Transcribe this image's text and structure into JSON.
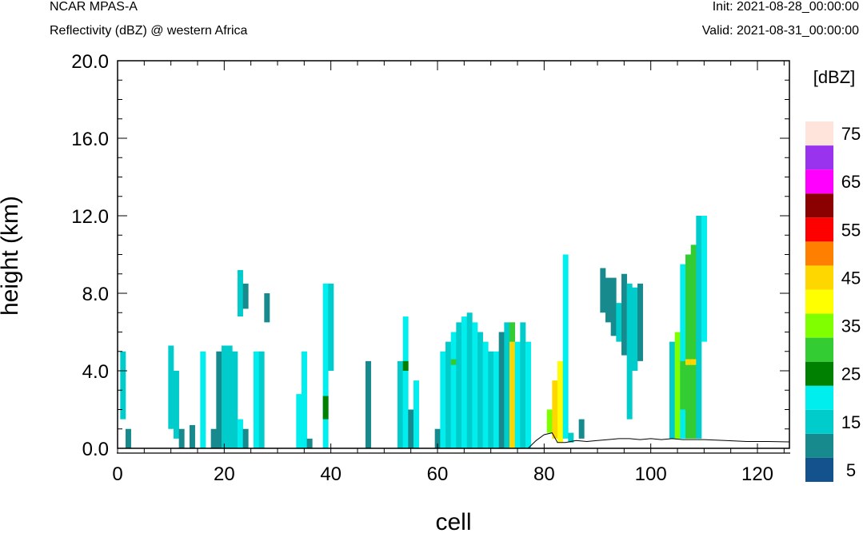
{
  "header": {
    "title_left": "NCAR MPAS-A",
    "subtitle_left": "Reflectivity (dBZ) @ western Africa",
    "title_right": "Init: 2021-08-28_00:00:00",
    "subtitle_right": "Valid: 2021-08-31_00:00:00"
  },
  "chart_data": {
    "type": "heatmap",
    "title": "Reflectivity (dBZ) @ western Africa",
    "xlabel": "cell",
    "ylabel": "height (km)",
    "xlim": [
      0,
      126
    ],
    "ylim": [
      0,
      20
    ],
    "x_ticks": [
      "0",
      "20",
      "40",
      "60",
      "80",
      "100",
      "120"
    ],
    "y_ticks": [
      "0.0",
      "4.0",
      "8.0",
      "12.0",
      "16.0",
      "20.0"
    ],
    "colorbar": {
      "unit_label": "[dBZ]",
      "tick_labels": [
        "5",
        "15",
        "25",
        "35",
        "45",
        "55",
        "65",
        "75"
      ],
      "levels": [
        5,
        10,
        15,
        20,
        25,
        30,
        35,
        40,
        45,
        50,
        55,
        60,
        65,
        70,
        75
      ],
      "colors": [
        "#13528c",
        "#168a8c",
        "#00cccc",
        "#00eeee",
        "#008000",
        "#33cc33",
        "#80ff00",
        "#ffff00",
        "#ffd700",
        "#ff8000",
        "#ff0000",
        "#8b0000",
        "#ff00ff",
        "#9933ee",
        "#ffe4dc"
      ]
    },
    "columns": [
      {
        "x": 1,
        "segs": [
          [
            1.5,
            5,
            2
          ]
        ]
      },
      {
        "x": 2,
        "segs": [
          [
            0,
            1,
            1
          ]
        ]
      },
      {
        "x": 10,
        "segs": [
          [
            1,
            5.3,
            2
          ]
        ]
      },
      {
        "x": 11,
        "segs": [
          [
            0.5,
            4,
            2
          ]
        ]
      },
      {
        "x": 12,
        "segs": [
          [
            0,
            1,
            1
          ]
        ]
      },
      {
        "x": 14,
        "segs": [
          [
            0,
            1.2,
            1
          ]
        ]
      },
      {
        "x": 16,
        "segs": [
          [
            0,
            5,
            3
          ]
        ]
      },
      {
        "x": 18,
        "segs": [
          [
            0,
            1,
            1
          ]
        ]
      },
      {
        "x": 19,
        "segs": [
          [
            0,
            5,
            1
          ]
        ]
      },
      {
        "x": 20,
        "segs": [
          [
            0,
            5.3,
            2
          ]
        ]
      },
      {
        "x": 21,
        "segs": [
          [
            0,
            5.3,
            2
          ]
        ]
      },
      {
        "x": 22,
        "segs": [
          [
            0,
            5,
            2
          ]
        ]
      },
      {
        "x": 23,
        "segs": [
          [
            0,
            1.5,
            3
          ],
          [
            6.8,
            9.2,
            2
          ]
        ]
      },
      {
        "x": 24,
        "segs": [
          [
            0,
            1,
            1
          ],
          [
            7.2,
            8.5,
            1
          ]
        ]
      },
      {
        "x": 26,
        "segs": [
          [
            0,
            5,
            3
          ]
        ]
      },
      {
        "x": 27,
        "segs": [
          [
            0,
            5,
            2
          ]
        ]
      },
      {
        "x": 28,
        "segs": [
          [
            6.5,
            8,
            1
          ]
        ]
      },
      {
        "x": 34,
        "segs": [
          [
            0,
            2.8,
            3
          ]
        ]
      },
      {
        "x": 35,
        "segs": [
          [
            0,
            5,
            3
          ]
        ]
      },
      {
        "x": 36,
        "segs": [
          [
            0,
            0.5,
            1
          ]
        ]
      },
      {
        "x": 39,
        "segs": [
          [
            0,
            8.5,
            3
          ],
          [
            1.5,
            2.7,
            4
          ]
        ]
      },
      {
        "x": 40,
        "segs": [
          [
            4,
            8.5,
            2
          ]
        ]
      },
      {
        "x": 47,
        "segs": [
          [
            0,
            4.5,
            1
          ]
        ]
      },
      {
        "x": 53,
        "segs": [
          [
            0,
            4.5,
            2
          ]
        ]
      },
      {
        "x": 54,
        "segs": [
          [
            0,
            6.8,
            3
          ],
          [
            4,
            4.5,
            4
          ]
        ]
      },
      {
        "x": 55,
        "segs": [
          [
            0,
            2,
            1
          ]
        ]
      },
      {
        "x": 56,
        "segs": [
          [
            0,
            3.5,
            3
          ]
        ]
      },
      {
        "x": 60,
        "segs": [
          [
            0,
            1,
            1
          ]
        ]
      },
      {
        "x": 61,
        "segs": [
          [
            0,
            5,
            3
          ]
        ]
      },
      {
        "x": 62,
        "segs": [
          [
            0,
            5.5,
            2
          ]
        ]
      },
      {
        "x": 63,
        "segs": [
          [
            0,
            6,
            3
          ],
          [
            4.3,
            4.6,
            5
          ]
        ]
      },
      {
        "x": 64,
        "segs": [
          [
            0,
            6.5,
            2
          ]
        ]
      },
      {
        "x": 65,
        "segs": [
          [
            0,
            6.8,
            3
          ]
        ]
      },
      {
        "x": 66,
        "segs": [
          [
            0,
            7,
            2
          ]
        ]
      },
      {
        "x": 67,
        "segs": [
          [
            0,
            6.5,
            3
          ]
        ]
      },
      {
        "x": 68,
        "segs": [
          [
            0,
            6,
            2
          ]
        ]
      },
      {
        "x": 69,
        "segs": [
          [
            0,
            5.5,
            3
          ]
        ]
      },
      {
        "x": 70,
        "segs": [
          [
            0,
            5,
            2
          ]
        ]
      },
      {
        "x": 71,
        "segs": [
          [
            0,
            5,
            3
          ]
        ]
      },
      {
        "x": 72,
        "segs": [
          [
            0,
            6,
            1
          ]
        ]
      },
      {
        "x": 73,
        "segs": [
          [
            0,
            6.5,
            2
          ]
        ]
      },
      {
        "x": 74,
        "segs": [
          [
            0,
            6.5,
            8
          ],
          [
            5.5,
            6.5,
            5
          ]
        ]
      },
      {
        "x": 75,
        "segs": [
          [
            0,
            5.5,
            3
          ]
        ]
      },
      {
        "x": 76,
        "segs": [
          [
            0,
            6.5,
            2
          ]
        ]
      },
      {
        "x": 77,
        "segs": [
          [
            0,
            5.5,
            3
          ]
        ]
      },
      {
        "x": 81,
        "segs": [
          [
            0.8,
            2,
            6
          ]
        ]
      },
      {
        "x": 82,
        "segs": [
          [
            0.5,
            3.5,
            8
          ]
        ]
      },
      {
        "x": 83,
        "segs": [
          [
            0.3,
            4.5,
            7
          ]
        ]
      },
      {
        "x": 84,
        "segs": [
          [
            0.5,
            10,
            3
          ]
        ]
      },
      {
        "x": 85,
        "segs": [
          [
            0.3,
            0.8,
            2
          ]
        ]
      },
      {
        "x": 87,
        "segs": [
          [
            0.5,
            1.5,
            1
          ]
        ]
      },
      {
        "x": 91,
        "segs": [
          [
            7,
            9.3,
            1
          ]
        ]
      },
      {
        "x": 92,
        "segs": [
          [
            6.5,
            8.8,
            1
          ]
        ]
      },
      {
        "x": 93,
        "segs": [
          [
            5.8,
            8.8,
            1
          ]
        ]
      },
      {
        "x": 94,
        "segs": [
          [
            5.5,
            7.5,
            2
          ]
        ]
      },
      {
        "x": 95,
        "segs": [
          [
            4.8,
            9,
            1
          ]
        ]
      },
      {
        "x": 96,
        "segs": [
          [
            1.5,
            8.5,
            2
          ]
        ]
      },
      {
        "x": 97,
        "segs": [
          [
            4,
            8.3,
            2
          ]
        ]
      },
      {
        "x": 98,
        "segs": [
          [
            4.5,
            8.5,
            1
          ]
        ]
      },
      {
        "x": 104,
        "segs": [
          [
            0.5,
            5.5,
            2
          ]
        ]
      },
      {
        "x": 105,
        "segs": [
          [
            0.5,
            6,
            6
          ]
        ]
      },
      {
        "x": 106,
        "segs": [
          [
            0.5,
            9.5,
            3
          ],
          [
            2,
            4.5,
            5
          ]
        ]
      },
      {
        "x": 107,
        "segs": [
          [
            0.5,
            10,
            5
          ],
          [
            4.3,
            4.6,
            8
          ]
        ]
      },
      {
        "x": 108,
        "segs": [
          [
            0.5,
            10.5,
            5
          ],
          [
            4.3,
            4.6,
            8
          ]
        ]
      },
      {
        "x": 109,
        "segs": [
          [
            0.5,
            12,
            2
          ]
        ]
      },
      {
        "x": 110,
        "segs": [
          [
            5.5,
            12,
            3
          ]
        ]
      }
    ]
  }
}
